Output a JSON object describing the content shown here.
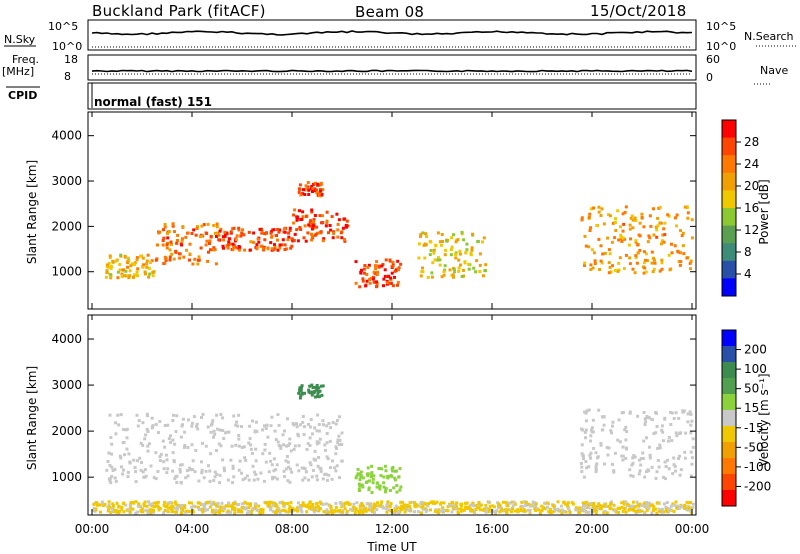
{
  "header": {
    "station": "Buckland Park (fitACF)",
    "beam": "Beam 08",
    "date": "15/Oct/2018"
  },
  "summary_panels": {
    "nsky_label": "N.Sky",
    "nsky_ticks": [
      "10^5",
      "10^0"
    ],
    "nsearch_label": "N.Search",
    "nsearch_ticks": [
      "10^5",
      "10^0"
    ],
    "freq_label": "Freq.",
    "freq_unit": "[MHz]",
    "freq_ticks": [
      "18",
      "8"
    ],
    "nave_label": "Nave",
    "nave_ticks": [
      "60",
      "0"
    ],
    "cpid_label": "CPID",
    "cpid_text": "normal (fast) 151"
  },
  "colors": {
    "power_scale": [
      "#0000ff",
      "#2850a8",
      "#3c8c78",
      "#5aa050",
      "#8cc832",
      "#f0c800",
      "#f0a000",
      "#ff7800",
      "#ff4600",
      "#ff0000"
    ],
    "velocity_scale": [
      "#0000ff",
      "#2850a8",
      "#3c8c50",
      "#50a050",
      "#8cd23c",
      "#c8c8c8",
      "#f0c800",
      "#f0a000",
      "#ff7800",
      "#ff4600",
      "#ff0000"
    ]
  },
  "chart_data": [
    {
      "type": "heatmap",
      "name": "power",
      "ylabel": "Slant Range [km]",
      "yticks": [
        "1000",
        "2000",
        "3000",
        "4000"
      ],
      "ylim": [
        200,
        4500
      ],
      "xticks": [
        "00:00",
        "04:00",
        "08:00",
        "12:00",
        "16:00",
        "20:00",
        "00:00"
      ],
      "xlim_hours": [
        0,
        24
      ],
      "colorbar": {
        "label": "Power [dB]",
        "ticks": [
          "4",
          "8",
          "12",
          "16",
          "20",
          "24",
          "28"
        ]
      },
      "features": [
        {
          "t": [
            0.5,
            2.5
          ],
          "range": [
            900,
            1400
          ],
          "level": 20
        },
        {
          "t": [
            2.5,
            5
          ],
          "range": [
            1200,
            2100
          ],
          "level": 26
        },
        {
          "t": [
            5,
            8
          ],
          "range": [
            1500,
            2000
          ],
          "level": 28
        },
        {
          "t": [
            8,
            10.2
          ],
          "range": [
            1700,
            2400
          ],
          "level": 30
        },
        {
          "t": [
            8.2,
            9.2
          ],
          "range": [
            2700,
            3000
          ],
          "level": 28
        },
        {
          "t": [
            10.5,
            12.3
          ],
          "range": [
            700,
            1300
          ],
          "level": 30
        },
        {
          "t": [
            13,
            15.7
          ],
          "range": [
            900,
            1900
          ],
          "level": 18
        },
        {
          "t": [
            19.5,
            24
          ],
          "range": [
            1000,
            2500
          ],
          "level": 22
        }
      ]
    },
    {
      "type": "heatmap",
      "name": "velocity",
      "ylabel": "Slant Range [km]",
      "yticks": [
        "1000",
        "2000",
        "3000",
        "4000"
      ],
      "ylim": [
        200,
        4500
      ],
      "xticks": [
        "00:00",
        "04:00",
        "08:00",
        "12:00",
        "16:00",
        "20:00",
        "00:00"
      ],
      "xlabel": "Time UT",
      "xlim_hours": [
        0,
        24
      ],
      "colorbar": {
        "label": "Velocity [m s⁻¹]",
        "ticks": [
          "200",
          "100",
          "50",
          "15",
          "-15",
          "-50",
          "-100",
          "-200"
        ]
      },
      "features": [
        {
          "t": [
            0.5,
            10
          ],
          "range": [
            900,
            2400
          ],
          "velocity": 0
        },
        {
          "t": [
            8.2,
            9.2
          ],
          "range": [
            2750,
            3050
          ],
          "velocity": 150
        },
        {
          "t": [
            10.5,
            12.3
          ],
          "range": [
            700,
            1300
          ],
          "velocity": 40
        },
        {
          "t": [
            0,
            24
          ],
          "range": [
            250,
            500
          ],
          "velocity": -30
        },
        {
          "t": [
            19.5,
            24
          ],
          "range": [
            1000,
            2500
          ],
          "velocity": 0
        }
      ]
    }
  ]
}
